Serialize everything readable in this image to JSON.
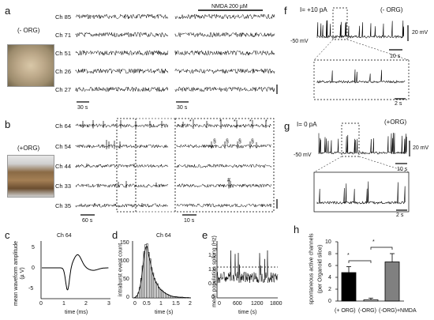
{
  "panel_labels": {
    "a": "a",
    "b": "b",
    "c": "c",
    "d": "d",
    "e": "e",
    "f": "f",
    "g": "g",
    "h": "h"
  },
  "panel_a": {
    "organoid_label": "(- ORG)",
    "channels": [
      "Ch 85",
      "Ch 71",
      "Ch 51",
      "Ch 26",
      "Ch 27"
    ],
    "nmda_label": "NMDA 200 µM",
    "scale_left": "30 s",
    "scale_right": "30 s"
  },
  "panel_b": {
    "organoid_label": "(+ORG)",
    "channels": [
      "Ch 64",
      "Ch 54",
      "Ch 44",
      "Ch 33",
      "Ch 35"
    ],
    "scale_left": "60 s",
    "scale_right": "10 s",
    "marks": [
      "*",
      "*",
      "*",
      "*",
      "*",
      "§",
      "§",
      "§",
      "§",
      "#"
    ]
  },
  "panel_c": {
    "title": "Ch 64",
    "ylabel": "mean waveform amplitude (µ V)",
    "xlabel": "time (ms)",
    "xticks": [
      "0",
      "1",
      "2",
      "3"
    ],
    "yticks": [
      "5",
      "0",
      "-5"
    ]
  },
  "panel_d": {
    "title": "Ch 64",
    "ylabel": "intraburst event count",
    "xlabel": "time (s)",
    "xticks": [
      "0",
      "0.5",
      "1",
      "1.5",
      "2"
    ],
    "yticks": [
      "0",
      "50",
      "100",
      "150"
    ]
  },
  "panel_e": {
    "ylabel": "mean population spiking (Hz)",
    "xlabel": "time (s)",
    "xticks": [
      "0",
      "600",
      "1200",
      "1800"
    ],
    "yticks": [
      "0",
      "0.5",
      "1.0",
      "1.5"
    ]
  },
  "panel_f": {
    "current": "I= +10 pA",
    "organoid_label": "(- ORG)",
    "vm_label": "-50 mV",
    "scale_v": "20 mV",
    "scale_t1": "10 s",
    "scale_t2": "2 s"
  },
  "panel_g": {
    "current": "I= 0 pA",
    "organoid_label": "(+ORG)",
    "vm_label": "-50 mV",
    "scale_v": "20 mV",
    "scale_t1": "10 s",
    "scale_t2": "2 s"
  },
  "panel_h": {
    "ylabel": "spontaneous active channels",
    "ylabel2": "(per Organoid slice)",
    "significance": [
      "*",
      "*"
    ]
  },
  "chart_data": [
    {
      "type": "bar",
      "categories": [
        "(+ ORG)",
        "(-ORG)",
        "(-ORG)+NMDA"
      ],
      "values": [
        4.8,
        0.2,
        6.6
      ],
      "errors": [
        1.0,
        0.3,
        1.4
      ],
      "colors": [
        "#000000",
        "#ffffff",
        "#808080"
      ],
      "ylim": [
        0,
        10
      ],
      "yticks": [
        0,
        2,
        4,
        6,
        8,
        10
      ],
      "ylabel": "spontaneous active channels (per Organoid slice)"
    },
    {
      "type": "bar",
      "title": "Ch 64",
      "xlabel": "time (s)",
      "ylabel": "intraburst event count",
      "bin_centers": [
        0.05,
        0.1,
        0.15,
        0.2,
        0.25,
        0.3,
        0.35,
        0.4,
        0.45,
        0.5,
        0.55,
        0.6,
        0.65,
        0.7,
        0.75,
        0.8,
        0.85,
        0.9,
        0.95,
        1.0,
        1.05,
        1.1,
        1.15,
        1.2,
        1.25,
        1.3,
        1.35,
        1.4,
        1.5,
        1.6,
        1.7,
        1.8,
        1.9,
        2.0
      ],
      "values": [
        0,
        2,
        6,
        14,
        30,
        55,
        90,
        130,
        150,
        152,
        128,
        110,
        85,
        70,
        55,
        45,
        40,
        30,
        25,
        22,
        18,
        15,
        12,
        10,
        8,
        6,
        5,
        4,
        3,
        2,
        2,
        1,
        1,
        0
      ],
      "xlim": [
        0,
        2
      ],
      "ylim": [
        0,
        160
      ]
    }
  ]
}
